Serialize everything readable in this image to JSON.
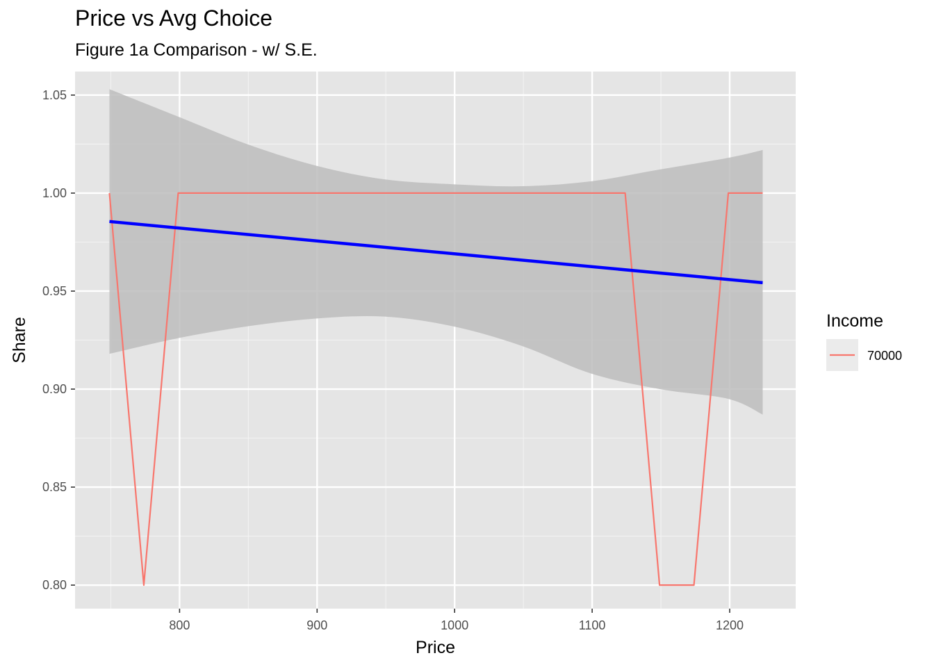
{
  "chart_data": {
    "type": "line",
    "title": "Price vs Avg Choice",
    "subtitle": "Figure 1a Comparison - w/ S.E.",
    "xlabel": "Price",
    "ylabel": "Share",
    "xlim": [
      724,
      1248
    ],
    "ylim": [
      0.788,
      1.062
    ],
    "x_ticks": [
      800,
      900,
      1000,
      1100,
      1200
    ],
    "x_tick_labels": [
      "800",
      "900",
      "1000",
      "1100",
      "1200"
    ],
    "y_ticks": [
      0.8,
      0.85,
      0.9,
      0.95,
      1.0,
      1.05
    ],
    "y_tick_labels": [
      "0.80",
      "0.85",
      "0.90",
      "0.95",
      "1.00",
      "1.05"
    ],
    "grid": true,
    "background": "#e5e5e5",
    "series": [
      {
        "name": "70000",
        "color": "#f8766d",
        "x": [
          749,
          774,
          799,
          824,
          849,
          874,
          899,
          924,
          949,
          974,
          999,
          1024,
          1049,
          1074,
          1099,
          1124,
          1149,
          1174,
          1199,
          1224
        ],
        "y": [
          1.0,
          0.8,
          1.0,
          1.0,
          1.0,
          1.0,
          1.0,
          1.0,
          1.0,
          1.0,
          1.0,
          1.0,
          1.0,
          1.0,
          1.0,
          1.0,
          0.8,
          0.8,
          1.0,
          1.0
        ]
      }
    ],
    "fit": {
      "method": "linear",
      "color": "#0000ff",
      "x": [
        749,
        1224
      ],
      "y": [
        0.9855,
        0.9543
      ],
      "se_band": {
        "fill": "#bdbdbd",
        "x": [
          749,
          799,
          849,
          899,
          949,
          999,
          1049,
          1099,
          1149,
          1199,
          1224
        ],
        "lower": [
          0.918,
          0.926,
          0.932,
          0.936,
          0.937,
          0.932,
          0.922,
          0.908,
          0.9,
          0.895,
          0.887
        ],
        "upper": [
          1.053,
          1.039,
          1.025,
          1.014,
          1.007,
          1.0045,
          1.0035,
          1.006,
          1.012,
          1.018,
          1.022
        ]
      }
    },
    "legend": {
      "title": "Income",
      "position": "right",
      "entries": [
        {
          "label": "70000",
          "color": "#f8766d"
        }
      ]
    }
  }
}
